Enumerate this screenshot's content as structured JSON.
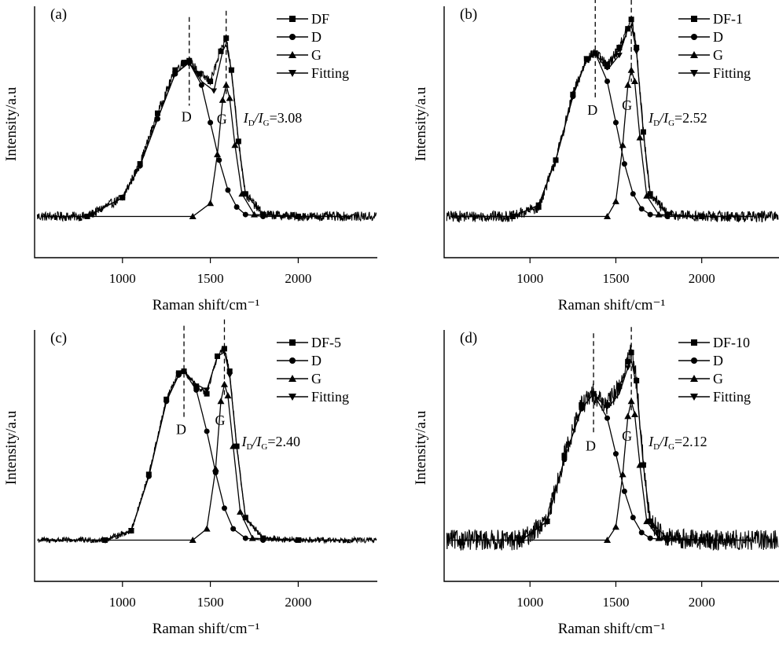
{
  "chart_data": [
    {
      "type": "line",
      "panel_label": "(a)",
      "xlabel": "Raman shift/cm⁻¹",
      "ylabel": "Intensity/a.u",
      "x_ticks": [
        1000,
        1500,
        2000
      ],
      "xlim": [
        500,
        2450
      ],
      "ylim": [
        -0.22,
        1.12
      ],
      "legend": {
        "position": "top-right",
        "entries": [
          "DF",
          "D",
          "G",
          "Fitting"
        ],
        "markers": [
          "square",
          "circle",
          "triangle-up",
          "triangle-down"
        ]
      },
      "peak_labels": [
        "D",
        "G"
      ],
      "ratio": {
        "prefix": "I",
        "sub1": "D",
        "slash": "/I",
        "sub2": "G",
        "value": "=3.08"
      },
      "noise": 0.025,
      "peaks": {
        "D": {
          "center": 1380,
          "height": 0.82,
          "width_left": 150,
          "width_right": 95
        },
        "G": {
          "center": 1590,
          "height": 0.7,
          "width_left": 38,
          "width_right": 48
        }
      },
      "series": [
        {
          "name": "DF",
          "x": [
            550,
            800,
            1000,
            1100,
            1200,
            1300,
            1350,
            1380,
            1440,
            1500,
            1560,
            1590,
            1620,
            1660,
            1700,
            1800,
            2000,
            2450
          ],
          "y": [
            0.0,
            0.0,
            0.1,
            0.28,
            0.55,
            0.78,
            0.82,
            0.83,
            0.76,
            0.72,
            0.88,
            0.95,
            0.78,
            0.4,
            0.12,
            0.01,
            0.0,
            0.0
          ]
        },
        {
          "name": "D",
          "x": [
            800,
            1000,
            1100,
            1200,
            1300,
            1380,
            1450,
            1500,
            1550,
            1600,
            1650,
            1700,
            1800,
            2000
          ],
          "y": [
            0.0,
            0.1,
            0.27,
            0.52,
            0.76,
            0.82,
            0.7,
            0.5,
            0.3,
            0.14,
            0.05,
            0.01,
            0.0,
            0.0
          ]
        },
        {
          "name": "G",
          "x": [
            800,
            1400,
            1500,
            1540,
            1570,
            1590,
            1610,
            1640,
            1680,
            1750,
            2000
          ],
          "y": [
            0.0,
            0.0,
            0.07,
            0.33,
            0.62,
            0.7,
            0.63,
            0.38,
            0.12,
            0.01,
            0.0
          ]
        },
        {
          "name": "Fitting",
          "x": [
            800,
            1000,
            1100,
            1200,
            1300,
            1380,
            1450,
            1520,
            1570,
            1590,
            1620,
            1660,
            1700,
            1800,
            2000
          ],
          "y": [
            0.0,
            0.1,
            0.27,
            0.52,
            0.76,
            0.82,
            0.72,
            0.67,
            0.88,
            0.92,
            0.78,
            0.4,
            0.12,
            0.01,
            0.0
          ]
        }
      ]
    },
    {
      "type": "line",
      "panel_label": "(b)",
      "xlabel": "Raman shift/cm⁻¹",
      "ylabel": "Intensity/a.u",
      "x_ticks": [
        1000,
        1500,
        2000
      ],
      "xlim": [
        500,
        2450
      ],
      "ylim": [
        -0.22,
        1.12
      ],
      "legend": {
        "position": "top-right",
        "entries": [
          "DF-1",
          "D",
          "G",
          "Fitting"
        ],
        "markers": [
          "square",
          "circle",
          "triangle-up",
          "triangle-down"
        ]
      },
      "peak_labels": [
        "D",
        "G"
      ],
      "ratio": {
        "prefix": "I",
        "sub1": "D",
        "slash": "/I",
        "sub2": "G",
        "value": "=2.52"
      },
      "noise": 0.03,
      "peaks": {
        "D": {
          "center": 1380,
          "height": 0.87,
          "width_left": 140,
          "width_right": 95
        },
        "G": {
          "center": 1590,
          "height": 0.78,
          "width_left": 40,
          "width_right": 42
        }
      },
      "series": [
        {
          "name": "DF-1",
          "x": [
            550,
            900,
            1050,
            1150,
            1250,
            1330,
            1380,
            1450,
            1520,
            1570,
            1590,
            1620,
            1660,
            1700,
            1800,
            2000,
            2450
          ],
          "y": [
            0.0,
            0.0,
            0.05,
            0.3,
            0.65,
            0.84,
            0.87,
            0.8,
            0.9,
            1.0,
            1.05,
            0.9,
            0.45,
            0.12,
            0.01,
            0.0,
            0.0
          ]
        },
        {
          "name": "D",
          "x": [
            900,
            1050,
            1150,
            1250,
            1330,
            1380,
            1450,
            1500,
            1550,
            1600,
            1650,
            1700,
            1800,
            2000
          ],
          "y": [
            0.0,
            0.06,
            0.3,
            0.64,
            0.84,
            0.87,
            0.72,
            0.5,
            0.28,
            0.12,
            0.04,
            0.01,
            0.0,
            0.0
          ]
        },
        {
          "name": "G",
          "x": [
            900,
            1450,
            1500,
            1540,
            1570,
            1590,
            1610,
            1640,
            1680,
            1750,
            2000
          ],
          "y": [
            0.0,
            0.0,
            0.08,
            0.38,
            0.7,
            0.78,
            0.72,
            0.42,
            0.11,
            0.01,
            0.0
          ]
        },
        {
          "name": "Fitting",
          "x": [
            900,
            1050,
            1150,
            1250,
            1330,
            1380,
            1450,
            1520,
            1570,
            1590,
            1620,
            1660,
            1700,
            1800,
            2000
          ],
          "y": [
            0.0,
            0.06,
            0.3,
            0.64,
            0.84,
            0.87,
            0.78,
            0.86,
            1.0,
            1.02,
            0.88,
            0.45,
            0.12,
            0.01,
            0.0
          ]
        }
      ]
    },
    {
      "type": "line",
      "panel_label": "(c)",
      "xlabel": "Raman shift/cm⁻¹",
      "ylabel": "Intensity/a.u",
      "x_ticks": [
        1000,
        1500,
        2000
      ],
      "xlim": [
        500,
        2450
      ],
      "ylim": [
        -0.22,
        1.12
      ],
      "legend": {
        "position": "top-right",
        "entries": [
          "DF-5",
          "D",
          "G",
          "Fitting"
        ],
        "markers": [
          "square",
          "circle",
          "triangle-up",
          "triangle-down"
        ]
      },
      "peak_labels": [
        "D",
        "G"
      ],
      "ratio": {
        "prefix": "I",
        "sub1": "D",
        "slash": "/I",
        "sub2": "G",
        "value": "=2.40"
      },
      "noise": 0.015,
      "peaks": {
        "D": {
          "center": 1350,
          "height": 0.9,
          "width_left": 120,
          "width_right": 100
        },
        "G": {
          "center": 1580,
          "height": 0.83,
          "width_left": 38,
          "width_right": 42
        }
      },
      "series": [
        {
          "name": "DF-5",
          "x": [
            550,
            900,
            1050,
            1150,
            1250,
            1320,
            1350,
            1420,
            1480,
            1540,
            1580,
            1610,
            1650,
            1700,
            1800,
            2000,
            2450
          ],
          "y": [
            0.0,
            0.0,
            0.05,
            0.35,
            0.75,
            0.89,
            0.9,
            0.82,
            0.78,
            0.98,
            1.02,
            0.9,
            0.5,
            0.12,
            0.01,
            0.0,
            0.0
          ]
        },
        {
          "name": "D",
          "x": [
            900,
            1050,
            1150,
            1250,
            1320,
            1350,
            1420,
            1480,
            1530,
            1580,
            1630,
            1700,
            1800,
            2000
          ],
          "y": [
            0.0,
            0.05,
            0.34,
            0.74,
            0.88,
            0.9,
            0.8,
            0.58,
            0.36,
            0.17,
            0.06,
            0.01,
            0.0,
            0.0
          ]
        },
        {
          "name": "G",
          "x": [
            900,
            1400,
            1480,
            1530,
            1560,
            1580,
            1600,
            1630,
            1670,
            1740,
            2000
          ],
          "y": [
            0.0,
            0.0,
            0.06,
            0.38,
            0.74,
            0.83,
            0.77,
            0.5,
            0.15,
            0.01,
            0.0
          ]
        },
        {
          "name": "Fitting",
          "x": [
            900,
            1050,
            1150,
            1250,
            1320,
            1350,
            1420,
            1480,
            1540,
            1580,
            1610,
            1650,
            1700,
            1800,
            2000
          ],
          "y": [
            0.0,
            0.05,
            0.34,
            0.74,
            0.88,
            0.9,
            0.83,
            0.8,
            0.98,
            1.0,
            0.88,
            0.5,
            0.12,
            0.01,
            0.0
          ]
        }
      ]
    },
    {
      "type": "line",
      "panel_label": "(d)",
      "xlabel": "Raman shift/cm⁻¹",
      "ylabel": "Intensity/a.u",
      "x_ticks": [
        1000,
        1500,
        2000
      ],
      "xlim": [
        500,
        2450
      ],
      "ylim": [
        -0.22,
        1.12
      ],
      "legend": {
        "position": "top-right",
        "entries": [
          "DF-10",
          "D",
          "G",
          "Fitting"
        ],
        "markers": [
          "square",
          "circle",
          "triangle-up",
          "triangle-down"
        ]
      },
      "peak_labels": [
        "D",
        "G"
      ],
      "ratio": {
        "prefix": "I",
        "sub1": "D",
        "slash": "/I",
        "sub2": "G",
        "value": "=2.12"
      },
      "noise": 0.055,
      "peaks": {
        "D": {
          "center": 1370,
          "height": 0.78,
          "width_left": 130,
          "width_right": 95
        },
        "G": {
          "center": 1590,
          "height": 0.74,
          "width_left": 38,
          "width_right": 40
        }
      },
      "series": [
        {
          "name": "DF-10",
          "x": [
            550,
            950,
            1100,
            1200,
            1300,
            1370,
            1450,
            1520,
            1570,
            1590,
            1620,
            1660,
            1700,
            1800,
            2000,
            2450
          ],
          "y": [
            0.0,
            0.0,
            0.1,
            0.45,
            0.72,
            0.78,
            0.72,
            0.82,
            0.95,
            1.0,
            0.85,
            0.4,
            0.1,
            0.01,
            0.0,
            0.0
          ]
        },
        {
          "name": "D",
          "x": [
            950,
            1100,
            1200,
            1300,
            1370,
            1450,
            1500,
            1550,
            1600,
            1650,
            1700,
            1800,
            2000
          ],
          "y": [
            0.0,
            0.1,
            0.43,
            0.7,
            0.78,
            0.65,
            0.46,
            0.26,
            0.12,
            0.04,
            0.01,
            0.0,
            0.0
          ]
        },
        {
          "name": "G",
          "x": [
            950,
            1450,
            1500,
            1540,
            1570,
            1590,
            1610,
            1640,
            1680,
            1750,
            2000
          ],
          "y": [
            0.0,
            0.0,
            0.07,
            0.35,
            0.66,
            0.74,
            0.67,
            0.4,
            0.1,
            0.01,
            0.0
          ]
        },
        {
          "name": "Fitting",
          "x": [
            950,
            1100,
            1200,
            1300,
            1370,
            1450,
            1520,
            1570,
            1590,
            1620,
            1660,
            1700,
            1800,
            2000
          ],
          "y": [
            0.0,
            0.1,
            0.43,
            0.7,
            0.78,
            0.7,
            0.78,
            0.92,
            0.96,
            0.82,
            0.4,
            0.1,
            0.01,
            0.0
          ]
        }
      ]
    }
  ]
}
